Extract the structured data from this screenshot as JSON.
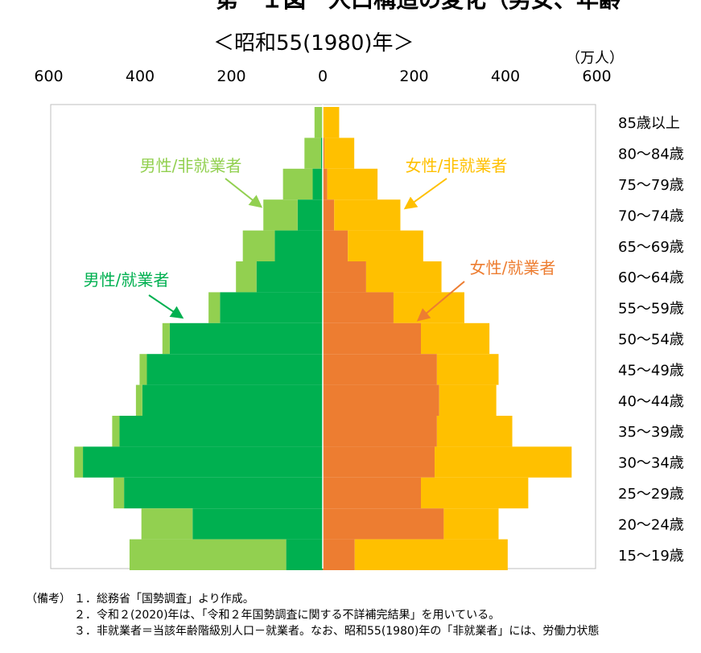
{
  "chart_data": {
    "type": "bar",
    "title": "第　１図　人口構造の変化（男女、年齢",
    "subtitle": "＜昭和55(1980)年＞",
    "unit": "（万人）",
    "x_ticks": [
      "600",
      "400",
      "200",
      "0",
      "200",
      "400",
      "600"
    ],
    "xlim": [
      -600,
      600
    ],
    "categories": [
      "85歳以上",
      "80～84歳",
      "75～79歳",
      "70～74歳",
      "65～69歳",
      "60～64歳",
      "55～59歳",
      "50～54歳",
      "45～49歳",
      "40～44歳",
      "35～39歳",
      "30～34歳",
      "25～29歳",
      "20～24歳",
      "15～19歳"
    ],
    "series": [
      {
        "name": "男性/就業者",
        "side": "left",
        "values": [
          1,
          4,
          22,
          55,
          105,
          145,
          225,
          335,
          385,
          395,
          445,
          525,
          435,
          285,
          80
        ]
      },
      {
        "name": "男性/非就業者",
        "side": "left",
        "values": [
          17,
          36,
          65,
          75,
          70,
          45,
          25,
          16,
          16,
          14,
          16,
          19,
          23,
          112,
          343
        ]
      },
      {
        "name": "女性/就業者",
        "side": "right",
        "values": [
          1,
          4,
          10,
          25,
          55,
          95,
          155,
          215,
          250,
          255,
          250,
          245,
          215,
          265,
          70
        ]
      },
      {
        "name": "女性/非就業者",
        "side": "right",
        "values": [
          35,
          65,
          110,
          145,
          165,
          165,
          155,
          150,
          135,
          125,
          165,
          300,
          235,
          120,
          335
        ]
      }
    ],
    "colors": {
      "male_employed": "#00b050",
      "male_nonemployed": "#92d050",
      "female_employed": "#ed7d31",
      "female_nonemployed": "#ffc000"
    },
    "annotations": [
      {
        "text": "男性/非就業者",
        "series": "男性/非就業者"
      },
      {
        "text": "女性/非就業者",
        "series": "女性/非就業者"
      },
      {
        "text": "男性/就業者",
        "series": "男性/就業者"
      },
      {
        "text": "女性/就業者",
        "series": "女性/就業者"
      }
    ],
    "grid": false,
    "legend": "annotations"
  },
  "notes": {
    "label": "（備考）",
    "items": [
      "１．総務省「国勢調査」より作成。",
      "２．令和２(2020)年は、「令和２年国勢調査に関する不詳補完結果」を用いている。",
      "３．非就業者＝当該年齢階級別人口－就業者。なお、昭和55(1980)年の「非就業者」には、労働力状態"
    ]
  }
}
